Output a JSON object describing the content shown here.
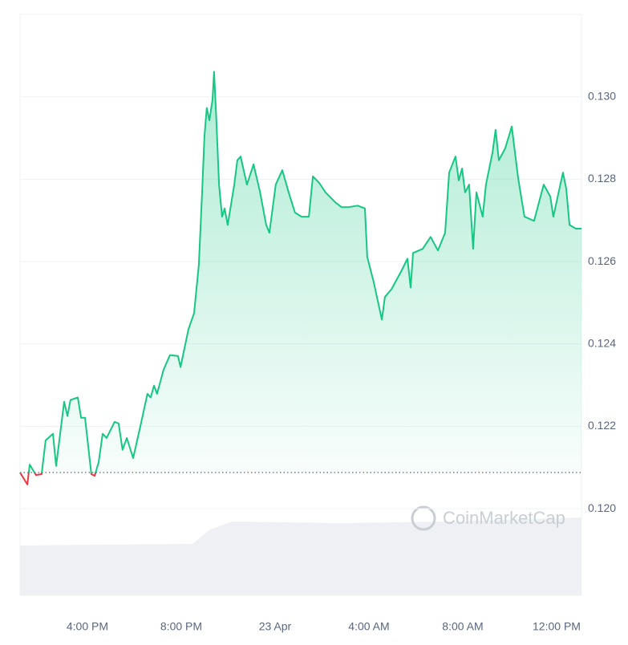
{
  "chart_data": {
    "type": "line",
    "watermark": "CoinMarketCap",
    "color": "#16c784",
    "down_color": "#ea3943",
    "grid": true,
    "x": [
      13.13,
      13.44,
      13.54,
      13.81,
      14.05,
      14.22,
      14.53,
      14.67,
      15.01,
      15.15,
      15.28,
      15.59,
      15.73,
      15.9,
      16.17,
      16.31,
      16.48,
      16.65,
      16.82,
      17.16,
      17.33,
      17.5,
      17.68,
      17.95,
      18.26,
      18.56,
      18.7,
      18.84,
      18.97,
      19.25,
      19.52,
      19.86,
      19.97,
      20.31,
      20.55,
      20.75,
      20.89,
      20.99,
      21.09,
      21.2,
      21.33,
      21.4,
      21.5,
      21.61,
      21.74,
      21.85,
      21.98,
      22.26,
      22.39,
      22.53,
      22.8,
      23.08,
      23.35,
      23.62,
      23.76,
      24.03,
      24.31,
      24.58,
      24.85,
      25.13,
      25.44,
      25.61,
      25.88,
      26.15,
      26.56,
      26.84,
      27.11,
      27.52,
      27.83,
      27.93,
      28.21,
      28.55,
      28.68,
      28.96,
      29.37,
      29.64,
      29.78,
      29.88,
      30.29,
      30.63,
      30.94,
      31.25,
      31.42,
      31.69,
      31.83,
      31.97,
      32.1,
      32.27,
      32.44,
      32.58,
      32.85,
      32.99,
      33.27,
      33.4,
      33.54,
      33.81,
      34.09,
      34.36,
      34.63,
      35.04,
      35.45,
      35.73,
      35.86,
      36.27,
      36.41,
      36.55,
      36.82,
      37.06
    ],
    "values": [
      0.12088,
      0.12059,
      0.12107,
      0.12082,
      0.12084,
      0.12166,
      0.12182,
      0.12104,
      0.1226,
      0.12225,
      0.12264,
      0.1227,
      0.12221,
      0.12221,
      0.12084,
      0.1208,
      0.12113,
      0.12182,
      0.12172,
      0.12211,
      0.12207,
      0.12143,
      0.12172,
      0.12123,
      0.12201,
      0.12279,
      0.1227,
      0.12299,
      0.12279,
      0.12338,
      0.12373,
      0.12371,
      0.12344,
      0.12436,
      0.12475,
      0.12592,
      0.12768,
      0.12904,
      0.12973,
      0.12943,
      0.12992,
      0.13061,
      0.12943,
      0.12787,
      0.12709,
      0.12729,
      0.12689,
      0.12787,
      0.12846,
      0.12855,
      0.12787,
      0.12836,
      0.12771,
      0.12689,
      0.1267,
      0.12787,
      0.12822,
      0.12768,
      0.12719,
      0.12709,
      0.12709,
      0.12807,
      0.12791,
      0.12768,
      0.12744,
      0.12732,
      0.12732,
      0.12736,
      0.12729,
      0.12611,
      0.12549,
      0.12459,
      0.12514,
      0.12533,
      0.12576,
      0.12607,
      0.12537,
      0.12621,
      0.12631,
      0.1266,
      0.12627,
      0.1267,
      0.12816,
      0.12855,
      0.12797,
      0.12826,
      0.12768,
      0.12787,
      0.12631,
      0.12768,
      0.12709,
      0.12787,
      0.12865,
      0.1292,
      0.12846,
      0.12875,
      0.12928,
      0.12803,
      0.12709,
      0.12699,
      0.12787,
      0.12758,
      0.12709,
      0.12816,
      0.12777,
      0.12689,
      0.1268,
      0.1268
    ],
    "xlim": [
      13.13,
      37.06
    ],
    "xticks": [
      {
        "value": 16,
        "label": "4:00 PM"
      },
      {
        "value": 20,
        "label": "8:00 PM"
      },
      {
        "value": 24,
        "label": "23 Apr"
      },
      {
        "value": 28,
        "label": "4:00 AM"
      },
      {
        "value": 32,
        "label": "8:00 AM"
      },
      {
        "value": 36,
        "label": "12:00 PM"
      }
    ],
    "ylim": [
      0.1179,
      0.132
    ],
    "yticks": [
      {
        "value": 0.12,
        "label": "0.120"
      },
      {
        "value": 0.122,
        "label": "0.122"
      },
      {
        "value": 0.124,
        "label": "0.124"
      },
      {
        "value": 0.126,
        "label": "0.126"
      },
      {
        "value": 0.128,
        "label": "0.128"
      },
      {
        "value": 0.13,
        "label": "0.130"
      }
    ]
  }
}
